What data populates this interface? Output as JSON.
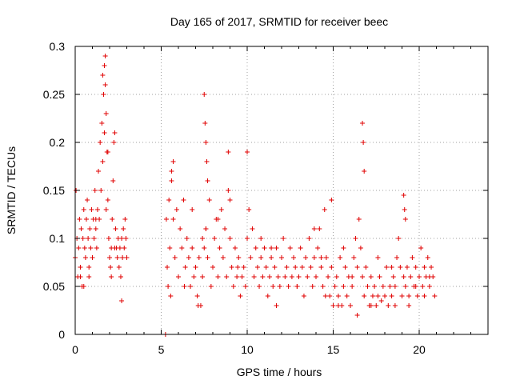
{
  "chart_data": {
    "type": "scatter",
    "title": "Day 165 of 2017, SRMTID for receiver beec",
    "xlabel": "GPS time / hours",
    "ylabel": "SRMTID / TECUs",
    "xlim": [
      0,
      24
    ],
    "ylim": [
      0,
      0.3
    ],
    "xticks": [
      0,
      5,
      10,
      15,
      20
    ],
    "yticks": [
      0,
      0.05,
      0.1,
      0.15,
      0.2,
      0.25,
      0.3
    ],
    "xtick_labels": [
      "0",
      "5",
      "10",
      "15",
      "20"
    ],
    "ytick_labels": [
      "0",
      "0.05",
      "0.1",
      "0.15",
      "0.2",
      "0.25",
      "0.3"
    ],
    "grid": true,
    "marker": "+",
    "color": "#e00000",
    "series": [
      {
        "name": "SRMTID",
        "x": [
          0.0,
          0.1,
          0.15,
          0.2,
          0.25,
          0.3,
          0.35,
          0.4,
          0.45,
          0.5,
          0.55,
          0.6,
          0.65,
          0.7,
          0.75,
          0.8,
          0.85,
          0.9,
          0.95,
          1.0,
          1.05,
          1.1,
          1.15,
          1.2,
          1.25,
          1.3,
          1.35,
          1.4,
          1.45,
          1.5,
          1.55,
          1.6,
          1.65,
          1.7,
          1.75,
          1.8,
          1.85,
          1.9,
          1.95,
          2.0,
          2.05,
          2.1,
          2.15,
          2.2,
          2.25,
          2.3,
          2.35,
          2.4,
          2.45,
          2.5,
          2.55,
          2.6,
          2.65,
          2.7,
          2.75,
          2.8,
          2.85,
          2.9,
          2.95,
          3.0,
          0.05,
          0.3,
          0.5,
          0.8,
          1.2,
          1.6,
          1.7,
          1.75,
          1.8,
          1.9,
          2.1,
          2.3,
          2.7,
          5.25,
          5.3,
          5.35,
          5.4,
          5.45,
          5.5,
          5.6,
          5.7,
          5.8,
          5.9,
          6.0,
          6.1,
          6.2,
          6.3,
          6.4,
          6.5,
          6.6,
          6.7,
          6.8,
          6.9,
          7.0,
          7.1,
          7.2,
          7.3,
          7.4,
          7.5,
          7.6,
          7.7,
          7.8,
          7.9,
          8.0,
          8.1,
          8.2,
          8.3,
          8.4,
          8.5,
          8.6,
          8.7,
          8.8,
          8.9,
          9.0,
          9.1,
          9.2,
          9.3,
          9.4,
          9.5,
          9.6,
          9.7,
          9.8,
          9.9,
          10.0,
          10.1,
          10.2,
          10.3,
          10.4,
          10.5,
          10.6,
          10.7,
          10.8,
          10.9,
          11.0,
          11.1,
          11.2,
          11.3,
          11.4,
          11.5,
          11.6,
          11.7,
          11.8,
          11.9,
          12.0,
          12.1,
          12.2,
          12.3,
          12.4,
          12.5,
          12.6,
          12.7,
          12.8,
          12.9,
          13.0,
          13.1,
          13.2,
          13.3,
          13.4,
          13.5,
          13.6,
          13.7,
          13.8,
          13.9,
          14.0,
          14.1,
          14.2,
          14.3,
          14.4,
          14.5,
          14.6,
          14.7,
          14.8,
          14.9,
          15.0,
          15.1,
          15.2,
          15.3,
          15.4,
          15.5,
          15.6,
          15.7,
          15.8,
          15.9,
          16.0,
          16.1,
          16.2,
          16.3,
          16.4,
          16.5,
          16.6,
          16.7,
          16.8,
          16.9,
          17.0,
          17.1,
          17.2,
          17.3,
          17.4,
          17.5,
          17.6,
          17.7,
          17.8,
          17.9,
          18.0,
          18.1,
          18.2,
          18.3,
          18.4,
          18.5,
          18.6,
          18.7,
          18.8,
          18.9,
          19.0,
          19.1,
          19.2,
          19.3,
          19.4,
          19.5,
          19.6,
          19.7,
          19.8,
          19.9,
          20.0,
          20.1,
          20.2,
          20.3,
          20.4,
          20.5,
          20.6,
          20.7,
          20.8,
          20.9,
          7.5,
          7.55,
          7.6,
          7.65,
          7.7,
          8.9,
          9.0,
          10.0,
          16.7,
          16.75,
          16.8,
          19.1,
          19.15,
          19.2,
          5.6,
          5.7,
          6.8,
          7.4,
          7.6,
          8.3,
          10.8,
          11.4,
          13.9,
          14.3,
          14.9,
          15.6,
          16.1,
          17.6,
          18.4,
          19.8,
          20.6,
          5.55,
          6.35,
          7.15,
          9.45,
          11.7,
          12.9,
          14.55,
          15.3,
          16.4,
          17.2,
          18.6,
          19.4,
          20.3
        ],
        "y": [
          0.08,
          0.1,
          0.06,
          0.09,
          0.12,
          0.07,
          0.11,
          0.05,
          0.1,
          0.13,
          0.09,
          0.08,
          0.12,
          0.14,
          0.1,
          0.07,
          0.11,
          0.09,
          0.13,
          0.08,
          0.12,
          0.1,
          0.15,
          0.11,
          0.09,
          0.13,
          0.17,
          0.12,
          0.2,
          0.15,
          0.22,
          0.18,
          0.25,
          0.21,
          0.29,
          0.23,
          0.19,
          0.14,
          0.1,
          0.08,
          0.07,
          0.09,
          0.12,
          0.16,
          0.2,
          0.21,
          0.11,
          0.09,
          0.08,
          0.1,
          0.07,
          0.09,
          0.06,
          0.1,
          0.08,
          0.11,
          0.09,
          0.12,
          0.1,
          0.08,
          0.15,
          0.06,
          0.05,
          0.06,
          0.12,
          0.27,
          0.28,
          0.26,
          0.13,
          0.19,
          0.06,
          0.09,
          0.035,
          0.0,
          0.12,
          0.07,
          0.05,
          0.14,
          0.09,
          0.17,
          0.12,
          0.08,
          0.13,
          0.06,
          0.11,
          0.09,
          0.14,
          0.07,
          0.1,
          0.08,
          0.05,
          0.09,
          0.06,
          0.07,
          0.04,
          0.08,
          0.03,
          0.06,
          0.09,
          0.11,
          0.08,
          0.14,
          0.05,
          0.07,
          0.1,
          0.12,
          0.06,
          0.09,
          0.13,
          0.08,
          0.11,
          0.06,
          0.15,
          0.1,
          0.07,
          0.05,
          0.09,
          0.06,
          0.08,
          0.04,
          0.06,
          0.07,
          0.05,
          0.1,
          0.13,
          0.08,
          0.11,
          0.06,
          0.09,
          0.07,
          0.05,
          0.08,
          0.06,
          0.09,
          0.07,
          0.04,
          0.06,
          0.08,
          0.05,
          0.07,
          0.09,
          0.06,
          0.05,
          0.08,
          0.1,
          0.06,
          0.07,
          0.05,
          0.09,
          0.06,
          0.08,
          0.07,
          0.05,
          0.06,
          0.09,
          0.07,
          0.04,
          0.08,
          0.06,
          0.1,
          0.07,
          0.05,
          0.08,
          0.06,
          0.09,
          0.11,
          0.07,
          0.05,
          0.13,
          0.08,
          0.06,
          0.04,
          0.07,
          0.03,
          0.05,
          0.06,
          0.04,
          0.08,
          0.03,
          0.05,
          0.07,
          0.04,
          0.06,
          0.03,
          0.05,
          0.08,
          0.1,
          0.07,
          0.12,
          0.09,
          0.06,
          0.04,
          0.07,
          0.05,
          0.03,
          0.06,
          0.04,
          0.05,
          0.03,
          0.04,
          0.06,
          0.035,
          0.05,
          0.04,
          0.07,
          0.03,
          0.05,
          0.04,
          0.06,
          0.05,
          0.08,
          0.1,
          0.07,
          0.04,
          0.06,
          0.05,
          0.07,
          0.04,
          0.06,
          0.08,
          0.05,
          0.07,
          0.04,
          0.06,
          0.09,
          0.05,
          0.07,
          0.06,
          0.08,
          0.05,
          0.07,
          0.06,
          0.04,
          0.25,
          0.22,
          0.2,
          0.18,
          0.16,
          0.19,
          0.14,
          0.19,
          0.22,
          0.2,
          0.17,
          0.145,
          0.13,
          0.12,
          0.16,
          0.18,
          0.13,
          0.1,
          0.11,
          0.12,
          0.1,
          0.09,
          0.11,
          0.08,
          0.14,
          0.09,
          0.06,
          0.08,
          0.07,
          0.05,
          0.06,
          0.04,
          0.05,
          0.03,
          0.07,
          0.03,
          0.05,
          0.04,
          0.03,
          0.02,
          0.03,
          0.03,
          0.03,
          0.04
        ]
      }
    ]
  }
}
